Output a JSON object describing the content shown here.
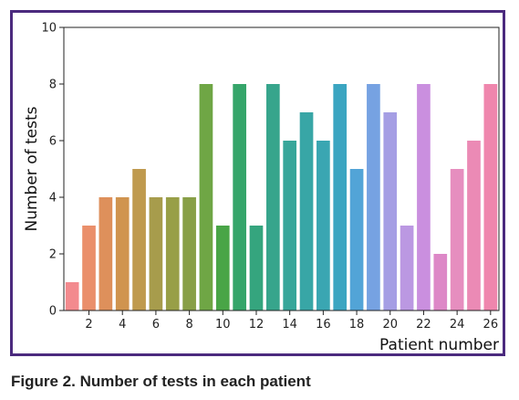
{
  "caption": "Figure 2. Number of tests in each patient",
  "colors": {
    "frame": "#4b2a7e"
  },
  "chart_data": {
    "type": "bar",
    "title": "",
    "xlabel": "Patient number",
    "ylabel": "Number of tests",
    "categories": [
      "1",
      "2",
      "3",
      "4",
      "5",
      "6",
      "7",
      "8",
      "9",
      "10",
      "11",
      "12",
      "13",
      "14",
      "15",
      "16",
      "17",
      "18",
      "19",
      "20",
      "21",
      "22",
      "23",
      "24",
      "25",
      "26"
    ],
    "x_tick_labels_shown": [
      "2",
      "4",
      "6",
      "8",
      "10",
      "12",
      "14",
      "16",
      "18",
      "20",
      "22",
      "24",
      "26"
    ],
    "values": [
      1,
      3,
      4,
      4,
      5,
      4,
      4,
      4,
      8,
      3,
      8,
      3,
      8,
      6,
      7,
      6,
      8,
      5,
      8,
      7,
      3,
      8,
      2,
      5,
      6,
      8
    ],
    "bar_colors": [
      "#f38a8e",
      "#ea8f6b",
      "#de905b",
      "#d0944f",
      "#bf9a4e",
      "#a79c4c",
      "#989f47",
      "#889f47",
      "#6fa645",
      "#49a547",
      "#35a56a",
      "#35a57e",
      "#37a58c",
      "#37a69a",
      "#38a6a6",
      "#3aa6b2",
      "#3ba5c1",
      "#52a4d7",
      "#76a2e2",
      "#a59ee4",
      "#bb98e2",
      "#ca8fdf",
      "#dd88c7",
      "#e68ebf",
      "#eb8ab5",
      "#ef86ad"
    ],
    "ylim": [
      0,
      10
    ],
    "yticks": [
      0,
      2,
      4,
      6,
      8,
      10
    ],
    "grid": false,
    "legend": "none"
  }
}
